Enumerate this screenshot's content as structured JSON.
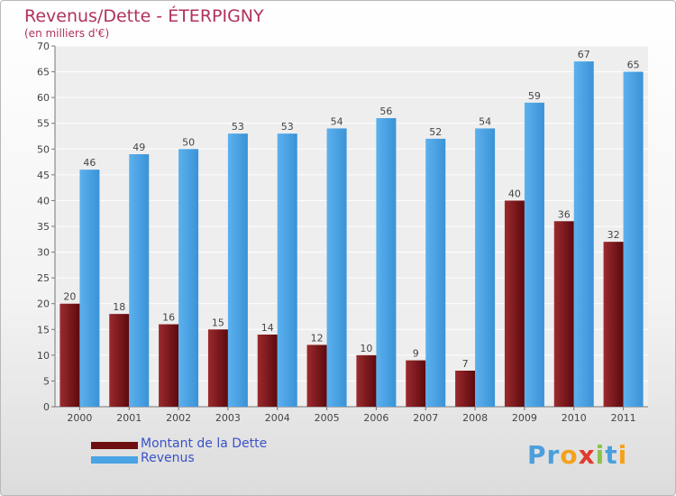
{
  "title": "Revenus/Dette - ÉTERPIGNY",
  "subtitle": "(en milliers d'€)",
  "logo": {
    "text": "Proxiti",
    "letters": [
      {
        "ch": "P",
        "color": "#4a9fdc"
      },
      {
        "ch": "r",
        "color": "#4a9fdc"
      },
      {
        "ch": "o",
        "color": "#f4a21c"
      },
      {
        "ch": "x",
        "color": "#e23a2e"
      },
      {
        "ch": "i",
        "color": "#8bc34a"
      },
      {
        "ch": "t",
        "color": "#4a9fdc"
      },
      {
        "ch": "i",
        "color": "#f4a21c"
      }
    ]
  },
  "legend": [
    {
      "label": "Montant de la Dette",
      "color": "#6e0e12"
    },
    {
      "label": "Revenus",
      "color": "#49a3e4"
    }
  ],
  "chart_data": {
    "type": "bar",
    "categories": [
      "2000",
      "2001",
      "2002",
      "2003",
      "2004",
      "2005",
      "2006",
      "2007",
      "2008",
      "2009",
      "2010",
      "2011"
    ],
    "series": [
      {
        "name": "Montant de la Dette",
        "color": "#7a1618",
        "values": [
          20,
          18,
          16,
          15,
          14,
          12,
          10,
          9,
          7,
          40,
          36,
          32
        ]
      },
      {
        "name": "Revenus",
        "color": "#49a3e4",
        "values": [
          46,
          49,
          50,
          53,
          53,
          54,
          56,
          52,
          54,
          59,
          67,
          65
        ]
      }
    ],
    "ylim": [
      0,
      70
    ],
    "yticks": [
      0,
      5,
      10,
      15,
      20,
      25,
      30,
      35,
      40,
      45,
      50,
      55,
      60,
      65,
      70
    ],
    "grid": true,
    "legend_position": "bottom-left"
  }
}
